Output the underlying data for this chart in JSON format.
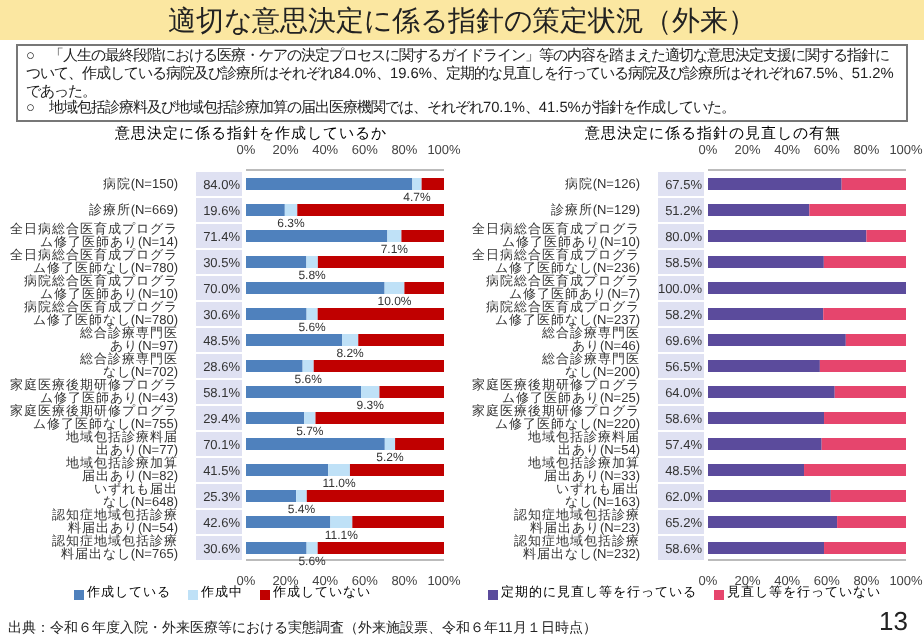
{
  "chart_data": [
    {
      "type": "bar",
      "orientation": "horizontal",
      "stacked": true,
      "title": "適切な意思決定に係る指針の策定状況（外来）",
      "subtitle": "意思決定に係る指針を作成しているか",
      "annotations": [
        "○　「人生の最終段階における医療・ケアの決定プロセスに関するガイドライン」等の内容を踏まえた適切な意思決定支援に関する指針について、作成している病院及び診療所はそれぞれ84.0%、19.6%、定期的な見直しを行っている病院及び診療所はそれぞれ67.5%、51.2%であった。",
        "○　地域包括診療料及び地域包括診療加算の届出医療機関では、それぞれ70.1%、41.5%が指針を作成していた。"
      ],
      "categories": [
        "病院(N=150)",
        "診療所(N=669)",
        "全日病総合医育成プログラム修了医師あり(N=14)",
        "全日病総合医育成プログラム修了医師なし(N=780)",
        "病院総合医育成プログラム修了医師あり(N=10)",
        "病院総合医育成プログラム修了医師なし(N=780)",
        "総合診療専門医あり(N=97)",
        "総合診療専門医なし(N=702)",
        "家庭医療後期研修プログラム修了医師あり(N=43)",
        "家庭医療後期研修プログラム修了医師なし(N=755)",
        "地域包括診療料届出あり(N=77)",
        "地域包括診療加算届出あり(N=82)",
        "いずれも届出なし(N=648)",
        "認知症地域包括診療料届出あり(N=54)",
        "認知症地域包括診療料届出なし(N=765)"
      ],
      "series": [
        {
          "name": "作成している",
          "color": "#4f81bd",
          "values": [
            84.0,
            19.6,
            71.4,
            30.5,
            70.0,
            30.6,
            48.5,
            28.6,
            58.1,
            29.4,
            70.1,
            41.5,
            25.3,
            42.6,
            30.6
          ],
          "value_labels": [
            "84.0%",
            "19.6%",
            "71.4%",
            "30.5%",
            "70.0%",
            "30.6%",
            "48.5%",
            "28.6%",
            "58.1%",
            "29.4%",
            "70.1%",
            "41.5%",
            "25.3%",
            "42.6%",
            "30.6%"
          ]
        },
        {
          "name": "作成中",
          "color": "#bfe1f7",
          "values": [
            4.7,
            6.3,
            7.1,
            5.8,
            10.0,
            5.6,
            8.2,
            5.6,
            9.3,
            5.7,
            5.2,
            11.0,
            5.4,
            11.1,
            5.6
          ],
          "value_labels": [
            "4.7%",
            "6.3%",
            "7.1%",
            "5.8%",
            "10.0%",
            "5.6%",
            "8.2%",
            "5.6%",
            "9.3%",
            "5.7%",
            "5.2%",
            "11.0%",
            "5.4%",
            "11.1%",
            "5.6%"
          ]
        },
        {
          "name": "作成していない",
          "color": "#c00000",
          "values": [
            11.3,
            74.1,
            21.5,
            63.7,
            20.0,
            63.8,
            43.3,
            65.8,
            32.6,
            64.9,
            24.7,
            47.5,
            69.3,
            46.3,
            63.8
          ]
        }
      ],
      "xlim": [
        0,
        100
      ],
      "xticks": [
        {
          "value": 0,
          "label": "0%"
        },
        {
          "value": 20,
          "label": "20%"
        },
        {
          "value": 40,
          "label": "40%"
        },
        {
          "value": 60,
          "label": "60%"
        },
        {
          "value": 80,
          "label": "80%"
        },
        {
          "value": 100,
          "label": "100%"
        }
      ],
      "x2lim": [
        0,
        100
      ],
      "x2ticks": [
        {
          "value": 0,
          "label": "0%"
        },
        {
          "value": 20,
          "label": "20%"
        },
        {
          "value": 40,
          "label": "40%"
        },
        {
          "value": 60,
          "label": "60%"
        },
        {
          "value": 80,
          "label": "80%"
        },
        {
          "value": 100,
          "label": "100%"
        }
      ],
      "legend": "bottom"
    },
    {
      "type": "bar",
      "orientation": "horizontal",
      "stacked": true,
      "subtitle": "意思決定に係る指針の見直しの有無",
      "annotations": [
        "出典：令和６年度入院・外来医療等における実態調査（外来施設票、令和６年11月１日時点）",
        "13"
      ],
      "categories": [
        "病院(N=126)",
        "診療所(N=129)",
        "全日病総合医育成プログラム修了医師あり(N=10)",
        "全日病総合医育成プログラム修了医師なし(N=236)",
        "病院総合医育成プログラム修了医師あり(N=7)",
        "病院総合医育成プログラム修了医師なし(N=237)",
        "総合診療専門医あり(N=46)",
        "総合診療専門医なし(N=200)",
        "家庭医療後期研修プログラム修了医師あり(N=25)",
        "家庭医療後期研修プログラム修了医師なし(N=220)",
        "地域包括診療料届出あり(N=54)",
        "地域包括診療加算届出あり(N=33)",
        "いずれも届出なし(N=163)",
        "認知症地域包括診療料届出あり(N=23)",
        "認知症地域包括診療料届出なし(N=232)"
      ],
      "series": [
        {
          "name": "定期的に見直し等を行っている",
          "color": "#5b4b9c",
          "values": [
            67.5,
            51.2,
            80.0,
            58.5,
            100.0,
            58.2,
            69.6,
            56.5,
            64.0,
            58.6,
            57.4,
            48.5,
            62.0,
            65.2,
            58.6
          ],
          "value_labels": [
            "67.5%",
            "51.2%",
            "80.0%",
            "58.5%",
            "100.0%",
            "58.2%",
            "69.6%",
            "56.5%",
            "64.0%",
            "58.6%",
            "57.4%",
            "48.5%",
            "62.0%",
            "65.2%",
            "58.6%"
          ]
        },
        {
          "name": "見直し等を行っていない",
          "color": "#e6456d",
          "values": [
            32.5,
            48.8,
            20.0,
            41.5,
            0.0,
            41.8,
            30.4,
            43.5,
            36.0,
            41.4,
            42.6,
            51.5,
            38.0,
            34.8,
            41.4
          ]
        }
      ],
      "xlim": [
        0,
        100
      ],
      "xticks": [
        {
          "value": 0,
          "label": "0%"
        },
        {
          "value": 20,
          "label": "20%"
        },
        {
          "value": 40,
          "label": "40%"
        },
        {
          "value": 60,
          "label": "60%"
        },
        {
          "value": 80,
          "label": "80%"
        },
        {
          "value": 100,
          "label": "100%"
        }
      ],
      "x2lim": [
        0,
        100
      ],
      "x2ticks": [
        {
          "value": 0,
          "label": "0%"
        },
        {
          "value": 20,
          "label": "20%"
        },
        {
          "value": 40,
          "label": "40%"
        },
        {
          "value": 60,
          "label": "60%"
        },
        {
          "value": 80,
          "label": "80%"
        },
        {
          "value": 100,
          "label": "100%"
        }
      ],
      "legend": "bottom"
    }
  ]
}
